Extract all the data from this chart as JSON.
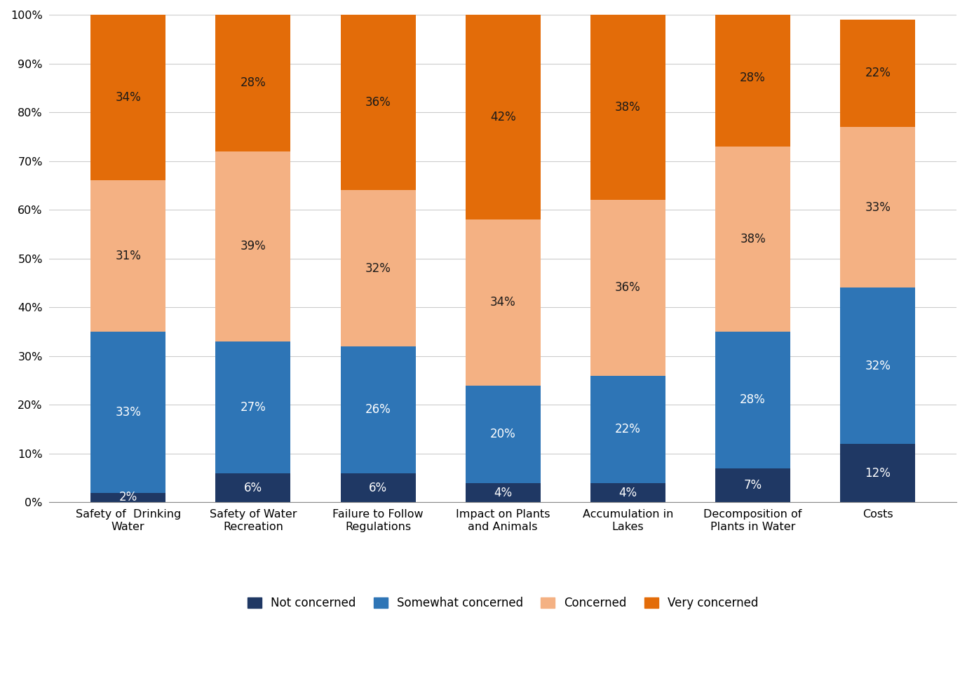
{
  "categories": [
    "Safety of  Drinking\nWater",
    "Safety of Water\nRecreation",
    "Failure to Follow\nRegulations",
    "Impact on Plants\nand Animals",
    "Accumulation in\nLakes",
    "Decomposition of\nPlants in Water",
    "Costs"
  ],
  "series": {
    "Not concerned": [
      2,
      6,
      6,
      4,
      4,
      7,
      12
    ],
    "Somewhat concerned": [
      33,
      27,
      26,
      20,
      22,
      28,
      32
    ],
    "Concerned": [
      31,
      39,
      32,
      34,
      36,
      38,
      33
    ],
    "Very concerned": [
      34,
      28,
      36,
      42,
      38,
      28,
      22
    ]
  },
  "colors": {
    "Not concerned": "#1f3864",
    "Somewhat concerned": "#2e75b6",
    "Concerned": "#f4b183",
    "Very concerned": "#e36c09"
  },
  "text_colors": {
    "Not concerned": "white",
    "Somewhat concerned": "white",
    "Concerned": "#1a1a1a",
    "Very concerned": "#1a1a1a"
  },
  "legend_order": [
    "Not concerned",
    "Somewhat concerned",
    "Concerned",
    "Very concerned"
  ],
  "ylim": [
    0,
    100
  ],
  "ytick_labels": [
    "0%",
    "10%",
    "20%",
    "30%",
    "40%",
    "50%",
    "60%",
    "70%",
    "80%",
    "90%",
    "100%"
  ],
  "ytick_values": [
    0,
    10,
    20,
    30,
    40,
    50,
    60,
    70,
    80,
    90,
    100
  ],
  "bar_width": 0.6,
  "figsize": [
    13.79,
    9.94
  ],
  "dpi": 100,
  "label_fontsize": 12,
  "tick_fontsize": 11.5,
  "legend_fontsize": 12
}
